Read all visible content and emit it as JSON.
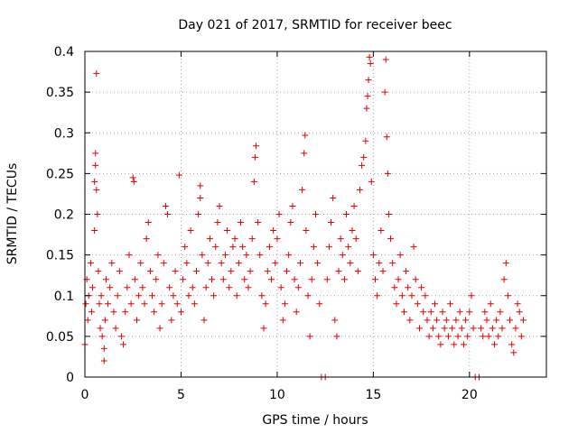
{
  "chart_data": {
    "type": "scatter",
    "title": "Day 021 of 2017, SRMTID for receiver beec",
    "xlabel": "GPS time / hours",
    "ylabel": "SRMTID / TECUs",
    "xlim": [
      0,
      24
    ],
    "ylim": [
      0,
      0.4
    ],
    "xticks": [
      0,
      5,
      10,
      15,
      20
    ],
    "xtick_labels": [
      "0",
      "5",
      "10",
      "15",
      "20"
    ],
    "yticks": [
      0,
      0.05,
      0.1,
      0.15,
      0.2,
      0.25,
      0.3,
      0.35,
      0.4
    ],
    "ytick_labels": [
      "0",
      "0.05",
      "0.1",
      "0.15",
      "0.2",
      "0.25",
      "0.3",
      "0.35",
      "0.4"
    ],
    "grid": true,
    "marker": "plus",
    "color": "#e00000",
    "series": [
      {
        "name": "SRMTID",
        "points": [
          [
            0.0,
            0.04
          ],
          [
            0.05,
            0.09
          ],
          [
            0.1,
            0.12
          ],
          [
            0.15,
            0.07
          ],
          [
            0.2,
            0.1
          ],
          [
            0.3,
            0.14
          ],
          [
            0.35,
            0.08
          ],
          [
            0.4,
            0.11
          ],
          [
            0.5,
            0.18
          ],
          [
            0.5,
            0.24
          ],
          [
            0.55,
            0.26
          ],
          [
            0.55,
            0.275
          ],
          [
            0.6,
            0.23
          ],
          [
            0.6,
            0.373
          ],
          [
            0.65,
            0.2
          ],
          [
            0.7,
            0.13
          ],
          [
            0.75,
            0.09
          ],
          [
            0.8,
            0.06
          ],
          [
            0.85,
            0.1
          ],
          [
            0.9,
            0.05
          ],
          [
            1.0,
            0.02
          ],
          [
            1.0,
            0.035
          ],
          [
            1.05,
            0.07
          ],
          [
            1.1,
            0.12
          ],
          [
            1.2,
            0.09
          ],
          [
            1.3,
            0.11
          ],
          [
            1.4,
            0.14
          ],
          [
            1.5,
            0.08
          ],
          [
            1.6,
            0.06
          ],
          [
            1.7,
            0.1
          ],
          [
            1.8,
            0.13
          ],
          [
            1.9,
            0.05
          ],
          [
            2.0,
            0.04
          ],
          [
            2.1,
            0.08
          ],
          [
            2.2,
            0.11
          ],
          [
            2.3,
            0.15
          ],
          [
            2.4,
            0.09
          ],
          [
            2.5,
            0.245
          ],
          [
            2.55,
            0.24
          ],
          [
            2.6,
            0.12
          ],
          [
            2.7,
            0.07
          ],
          [
            2.8,
            0.1
          ],
          [
            2.9,
            0.14
          ],
          [
            3.0,
            0.11
          ],
          [
            3.1,
            0.09
          ],
          [
            3.2,
            0.17
          ],
          [
            3.3,
            0.19
          ],
          [
            3.4,
            0.13
          ],
          [
            3.5,
            0.1
          ],
          [
            3.6,
            0.08
          ],
          [
            3.7,
            0.12
          ],
          [
            3.8,
            0.15
          ],
          [
            3.9,
            0.06
          ],
          [
            4.0,
            0.09
          ],
          [
            4.1,
            0.14
          ],
          [
            4.2,
            0.21
          ],
          [
            4.3,
            0.2
          ],
          [
            4.4,
            0.11
          ],
          [
            4.5,
            0.07
          ],
          [
            4.6,
            0.1
          ],
          [
            4.7,
            0.13
          ],
          [
            4.8,
            0.09
          ],
          [
            4.9,
            0.248
          ],
          [
            5.0,
            0.08
          ],
          [
            5.1,
            0.12
          ],
          [
            5.2,
            0.16
          ],
          [
            5.3,
            0.14
          ],
          [
            5.4,
            0.1
          ],
          [
            5.5,
            0.18
          ],
          [
            5.6,
            0.11
          ],
          [
            5.7,
            0.09
          ],
          [
            5.8,
            0.13
          ],
          [
            5.9,
            0.2
          ],
          [
            6.0,
            0.22
          ],
          [
            6.0,
            0.235
          ],
          [
            6.1,
            0.15
          ],
          [
            6.2,
            0.07
          ],
          [
            6.3,
            0.11
          ],
          [
            6.4,
            0.14
          ],
          [
            6.5,
            0.17
          ],
          [
            6.6,
            0.12
          ],
          [
            6.7,
            0.1
          ],
          [
            6.8,
            0.16
          ],
          [
            6.9,
            0.19
          ],
          [
            7.0,
            0.21
          ],
          [
            7.1,
            0.14
          ],
          [
            7.2,
            0.12
          ],
          [
            7.3,
            0.15
          ],
          [
            7.4,
            0.18
          ],
          [
            7.5,
            0.11
          ],
          [
            7.6,
            0.13
          ],
          [
            7.7,
            0.16
          ],
          [
            7.8,
            0.17
          ],
          [
            7.9,
            0.1
          ],
          [
            8.0,
            0.14
          ],
          [
            8.1,
            0.19
          ],
          [
            8.2,
            0.16
          ],
          [
            8.3,
            0.12
          ],
          [
            8.4,
            0.15
          ],
          [
            8.5,
            0.11
          ],
          [
            8.6,
            0.13
          ],
          [
            8.7,
            0.17
          ],
          [
            8.8,
            0.24
          ],
          [
            8.85,
            0.27
          ],
          [
            8.9,
            0.284
          ],
          [
            9.0,
            0.19
          ],
          [
            9.1,
            0.15
          ],
          [
            9.2,
            0.1
          ],
          [
            9.3,
            0.06
          ],
          [
            9.4,
            0.09
          ],
          [
            9.5,
            0.13
          ],
          [
            9.6,
            0.16
          ],
          [
            9.7,
            0.12
          ],
          [
            9.8,
            0.18
          ],
          [
            9.9,
            0.14
          ],
          [
            10.0,
            0.17
          ],
          [
            10.1,
            0.2
          ],
          [
            10.2,
            0.11
          ],
          [
            10.3,
            0.07
          ],
          [
            10.4,
            0.09
          ],
          [
            10.5,
            0.13
          ],
          [
            10.6,
            0.15
          ],
          [
            10.7,
            0.19
          ],
          [
            10.8,
            0.21
          ],
          [
            10.9,
            0.12
          ],
          [
            11.0,
            0.08
          ],
          [
            11.1,
            0.11
          ],
          [
            11.2,
            0.14
          ],
          [
            11.3,
            0.23
          ],
          [
            11.4,
            0.275
          ],
          [
            11.45,
            0.297
          ],
          [
            11.5,
            0.18
          ],
          [
            11.6,
            0.1
          ],
          [
            11.7,
            0.05
          ],
          [
            11.8,
            0.12
          ],
          [
            11.9,
            0.16
          ],
          [
            12.0,
            0.2
          ],
          [
            12.1,
            0.14
          ],
          [
            12.2,
            0.09
          ],
          [
            12.3,
            0.0
          ],
          [
            12.5,
            0.0
          ],
          [
            12.6,
            0.12
          ],
          [
            12.7,
            0.16
          ],
          [
            12.8,
            0.19
          ],
          [
            12.9,
            0.22
          ],
          [
            13.0,
            0.07
          ],
          [
            13.1,
            0.05
          ],
          [
            13.2,
            0.13
          ],
          [
            13.3,
            0.17
          ],
          [
            13.4,
            0.15
          ],
          [
            13.5,
            0.12
          ],
          [
            13.6,
            0.2
          ],
          [
            13.7,
            0.16
          ],
          [
            13.8,
            0.14
          ],
          [
            13.9,
            0.18
          ],
          [
            14.0,
            0.21
          ],
          [
            14.1,
            0.17
          ],
          [
            14.2,
            0.13
          ],
          [
            14.3,
            0.23
          ],
          [
            14.4,
            0.26
          ],
          [
            14.5,
            0.27
          ],
          [
            14.6,
            0.29
          ],
          [
            14.65,
            0.33
          ],
          [
            14.7,
            0.345
          ],
          [
            14.75,
            0.365
          ],
          [
            14.8,
            0.393
          ],
          [
            14.85,
            0.385
          ],
          [
            14.9,
            0.24
          ],
          [
            15.0,
            0.15
          ],
          [
            15.1,
            0.12
          ],
          [
            15.2,
            0.1
          ],
          [
            15.3,
            0.14
          ],
          [
            15.4,
            0.18
          ],
          [
            15.5,
            0.13
          ],
          [
            15.6,
            0.35
          ],
          [
            15.65,
            0.39
          ],
          [
            15.7,
            0.295
          ],
          [
            15.75,
            0.25
          ],
          [
            15.8,
            0.2
          ],
          [
            15.9,
            0.17
          ],
          [
            16.0,
            0.14
          ],
          [
            16.1,
            0.11
          ],
          [
            16.2,
            0.09
          ],
          [
            16.3,
            0.12
          ],
          [
            16.4,
            0.15
          ],
          [
            16.5,
            0.1
          ],
          [
            16.6,
            0.08
          ],
          [
            16.7,
            0.13
          ],
          [
            16.8,
            0.11
          ],
          [
            16.9,
            0.07
          ],
          [
            17.0,
            0.1
          ],
          [
            17.1,
            0.16
          ],
          [
            17.2,
            0.12
          ],
          [
            17.3,
            0.09
          ],
          [
            17.4,
            0.06
          ],
          [
            17.5,
            0.11
          ],
          [
            17.6,
            0.08
          ],
          [
            17.7,
            0.1
          ],
          [
            17.8,
            0.07
          ],
          [
            17.9,
            0.05
          ],
          [
            18.0,
            0.08
          ],
          [
            18.1,
            0.06
          ],
          [
            18.2,
            0.09
          ],
          [
            18.3,
            0.07
          ],
          [
            18.4,
            0.05
          ],
          [
            18.5,
            0.04
          ],
          [
            18.6,
            0.08
          ],
          [
            18.7,
            0.06
          ],
          [
            18.8,
            0.07
          ],
          [
            18.9,
            0.05
          ],
          [
            19.0,
            0.09
          ],
          [
            19.1,
            0.06
          ],
          [
            19.2,
            0.04
          ],
          [
            19.3,
            0.07
          ],
          [
            19.4,
            0.05
          ],
          [
            19.5,
            0.08
          ],
          [
            19.6,
            0.06
          ],
          [
            19.7,
            0.04
          ],
          [
            19.8,
            0.07
          ],
          [
            19.9,
            0.05
          ],
          [
            20.0,
            0.08
          ],
          [
            20.1,
            0.1
          ],
          [
            20.2,
            0.06
          ],
          [
            20.3,
            0.0
          ],
          [
            20.5,
            0.0
          ],
          [
            20.6,
            0.06
          ],
          [
            20.7,
            0.05
          ],
          [
            20.8,
            0.08
          ],
          [
            20.9,
            0.07
          ],
          [
            21.0,
            0.05
          ],
          [
            21.1,
            0.09
          ],
          [
            21.2,
            0.06
          ],
          [
            21.3,
            0.04
          ],
          [
            21.4,
            0.07
          ],
          [
            21.5,
            0.05
          ],
          [
            21.6,
            0.08
          ],
          [
            21.7,
            0.06
          ],
          [
            21.8,
            0.12
          ],
          [
            21.9,
            0.14
          ],
          [
            22.0,
            0.1
          ],
          [
            22.1,
            0.07
          ],
          [
            22.2,
            0.04
          ],
          [
            22.3,
            0.03
          ],
          [
            22.4,
            0.06
          ],
          [
            22.5,
            0.09
          ],
          [
            22.6,
            0.08
          ],
          [
            22.7,
            0.05
          ],
          [
            22.8,
            0.07
          ]
        ]
      }
    ]
  }
}
